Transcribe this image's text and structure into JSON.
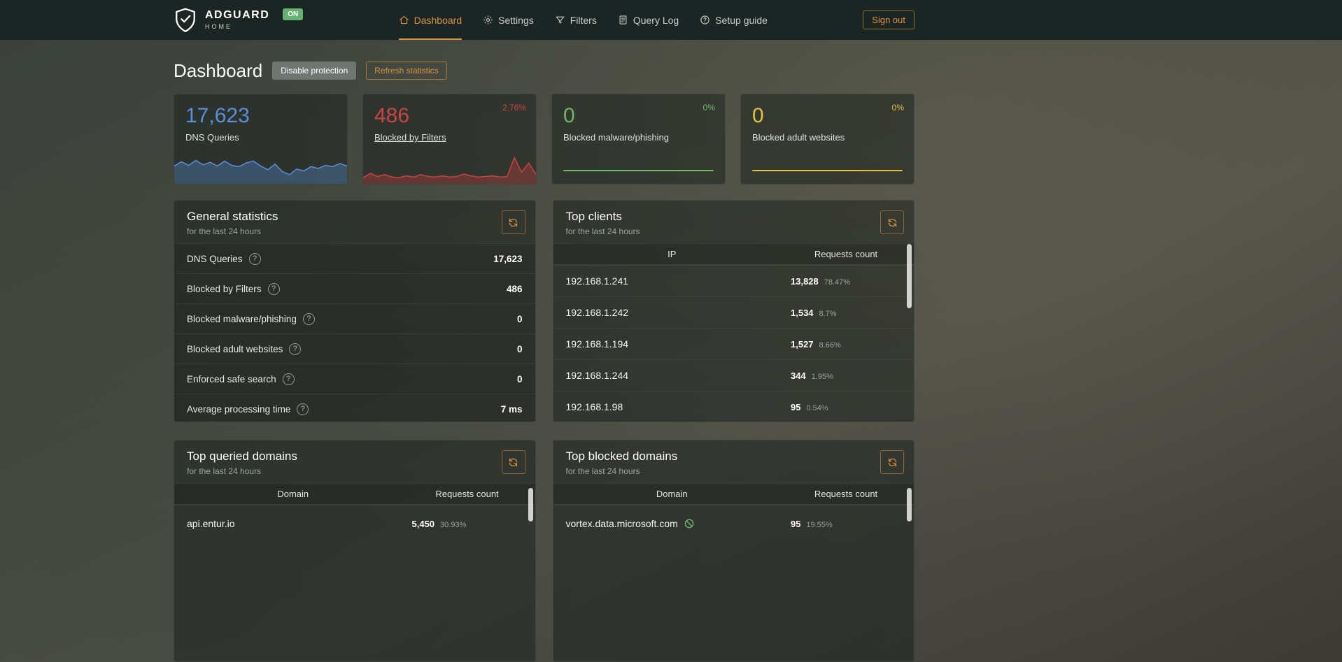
{
  "colors": {
    "accent_orange": "#da9440",
    "blue": "#5a8fd8",
    "red": "#cc4343",
    "green": "#6cb868",
    "yellow": "#dfc13d",
    "badge_green": "#67b173"
  },
  "icons": {
    "logo": "shield-check",
    "nav": [
      "home",
      "gear",
      "funnel",
      "document",
      "help-circle"
    ],
    "panel_action": "refresh-arrows",
    "row_help": "question-circle",
    "blocked": "circle-slash",
    "scroll": "scrollbar-thumb"
  },
  "navbar": {
    "brand": {
      "title": "ADGUARD",
      "subtitle": "HOME",
      "status_badge": "ON"
    },
    "items": [
      {
        "label": "Dashboard",
        "active": true
      },
      {
        "label": "Settings",
        "active": false
      },
      {
        "label": "Filters",
        "active": false
      },
      {
        "label": "Query Log",
        "active": false
      },
      {
        "label": "Setup guide",
        "active": false
      }
    ],
    "sign_out_label": "Sign out"
  },
  "page": {
    "title": "Dashboard",
    "disable_protection_label": "Disable protection",
    "refresh_statistics_label": "Refresh statistics"
  },
  "stat_cards": [
    {
      "value": "17,623",
      "label": "DNS Queries",
      "color": "#5a8fd8",
      "spark": [
        58,
        72,
        60,
        76,
        62,
        70,
        58,
        74,
        60,
        56,
        68,
        74,
        58,
        46,
        64,
        40,
        30,
        48,
        42,
        56,
        50,
        60,
        56,
        66,
        58
      ]
    },
    {
      "value": "486",
      "label": "Blocked by Filters",
      "percent": "2.76%",
      "color": "#cc4343",
      "spark": [
        20,
        34,
        24,
        30,
        22,
        20,
        26,
        22,
        30,
        24,
        22,
        26,
        22,
        24,
        32,
        26,
        22,
        24,
        26,
        22,
        24,
        85,
        38,
        68,
        30
      ]
    },
    {
      "value": "0",
      "label": "Blocked malware/phishing",
      "percent": "0%",
      "color": "#6cb868",
      "flat": true
    },
    {
      "value": "0",
      "label": "Blocked adult websites",
      "percent": "0%",
      "color": "#dfc13d",
      "flat": true
    }
  ],
  "general_statistics": {
    "title": "General statistics",
    "subtitle": "for the last 24 hours",
    "rows": [
      {
        "label": "DNS Queries",
        "value": "17,623"
      },
      {
        "label": "Blocked by Filters",
        "value": "486"
      },
      {
        "label": "Blocked malware/phishing",
        "value": "0"
      },
      {
        "label": "Blocked adult websites",
        "value": "0"
      },
      {
        "label": "Enforced safe search",
        "value": "0"
      },
      {
        "label": "Average processing time",
        "value": "7 ms"
      }
    ]
  },
  "top_clients": {
    "title": "Top clients",
    "subtitle": "for the last 24 hours",
    "columns": {
      "c1": "IP",
      "c2": "Requests count"
    },
    "rows": [
      {
        "ip": "192.168.1.241",
        "count": "13,828",
        "percent": "78.47%",
        "bar": 78.47,
        "bar_color": "#6cb868"
      },
      {
        "ip": "192.168.1.242",
        "count": "1,534",
        "percent": "8.7%",
        "bar": 8.7,
        "bar_color": "#cc4343"
      },
      {
        "ip": "192.168.1.194",
        "count": "1,527",
        "percent": "8.66%",
        "bar": 8.66,
        "bar_color": "#cc4343"
      },
      {
        "ip": "192.168.1.244",
        "count": "344",
        "percent": "1.95%",
        "bar": 1.95,
        "bar_color": "#cc4343"
      },
      {
        "ip": "192.168.1.98",
        "count": "95",
        "percent": "0.54%",
        "bar": 0.54,
        "bar_color": "#cc4343"
      }
    ]
  },
  "top_queried_domains": {
    "title": "Top queried domains",
    "subtitle": "for the last 24 hours",
    "columns": {
      "c1": "Domain",
      "c2": "Requests count"
    },
    "rows": [
      {
        "domain": "api.entur.io",
        "count": "5,450",
        "percent": "30.93%",
        "bar": 30.93,
        "bar_color": "#cc4343"
      }
    ]
  },
  "top_blocked_domains": {
    "title": "Top blocked domains",
    "subtitle": "for the last 24 hours",
    "columns": {
      "c1": "Domain",
      "c2": "Requests count"
    },
    "rows": [
      {
        "domain": "vortex.data.microsoft.com",
        "count": "95",
        "percent": "19.55%",
        "bar": 19.55,
        "bar_color": "#cc4343",
        "blocked": true
      }
    ]
  }
}
